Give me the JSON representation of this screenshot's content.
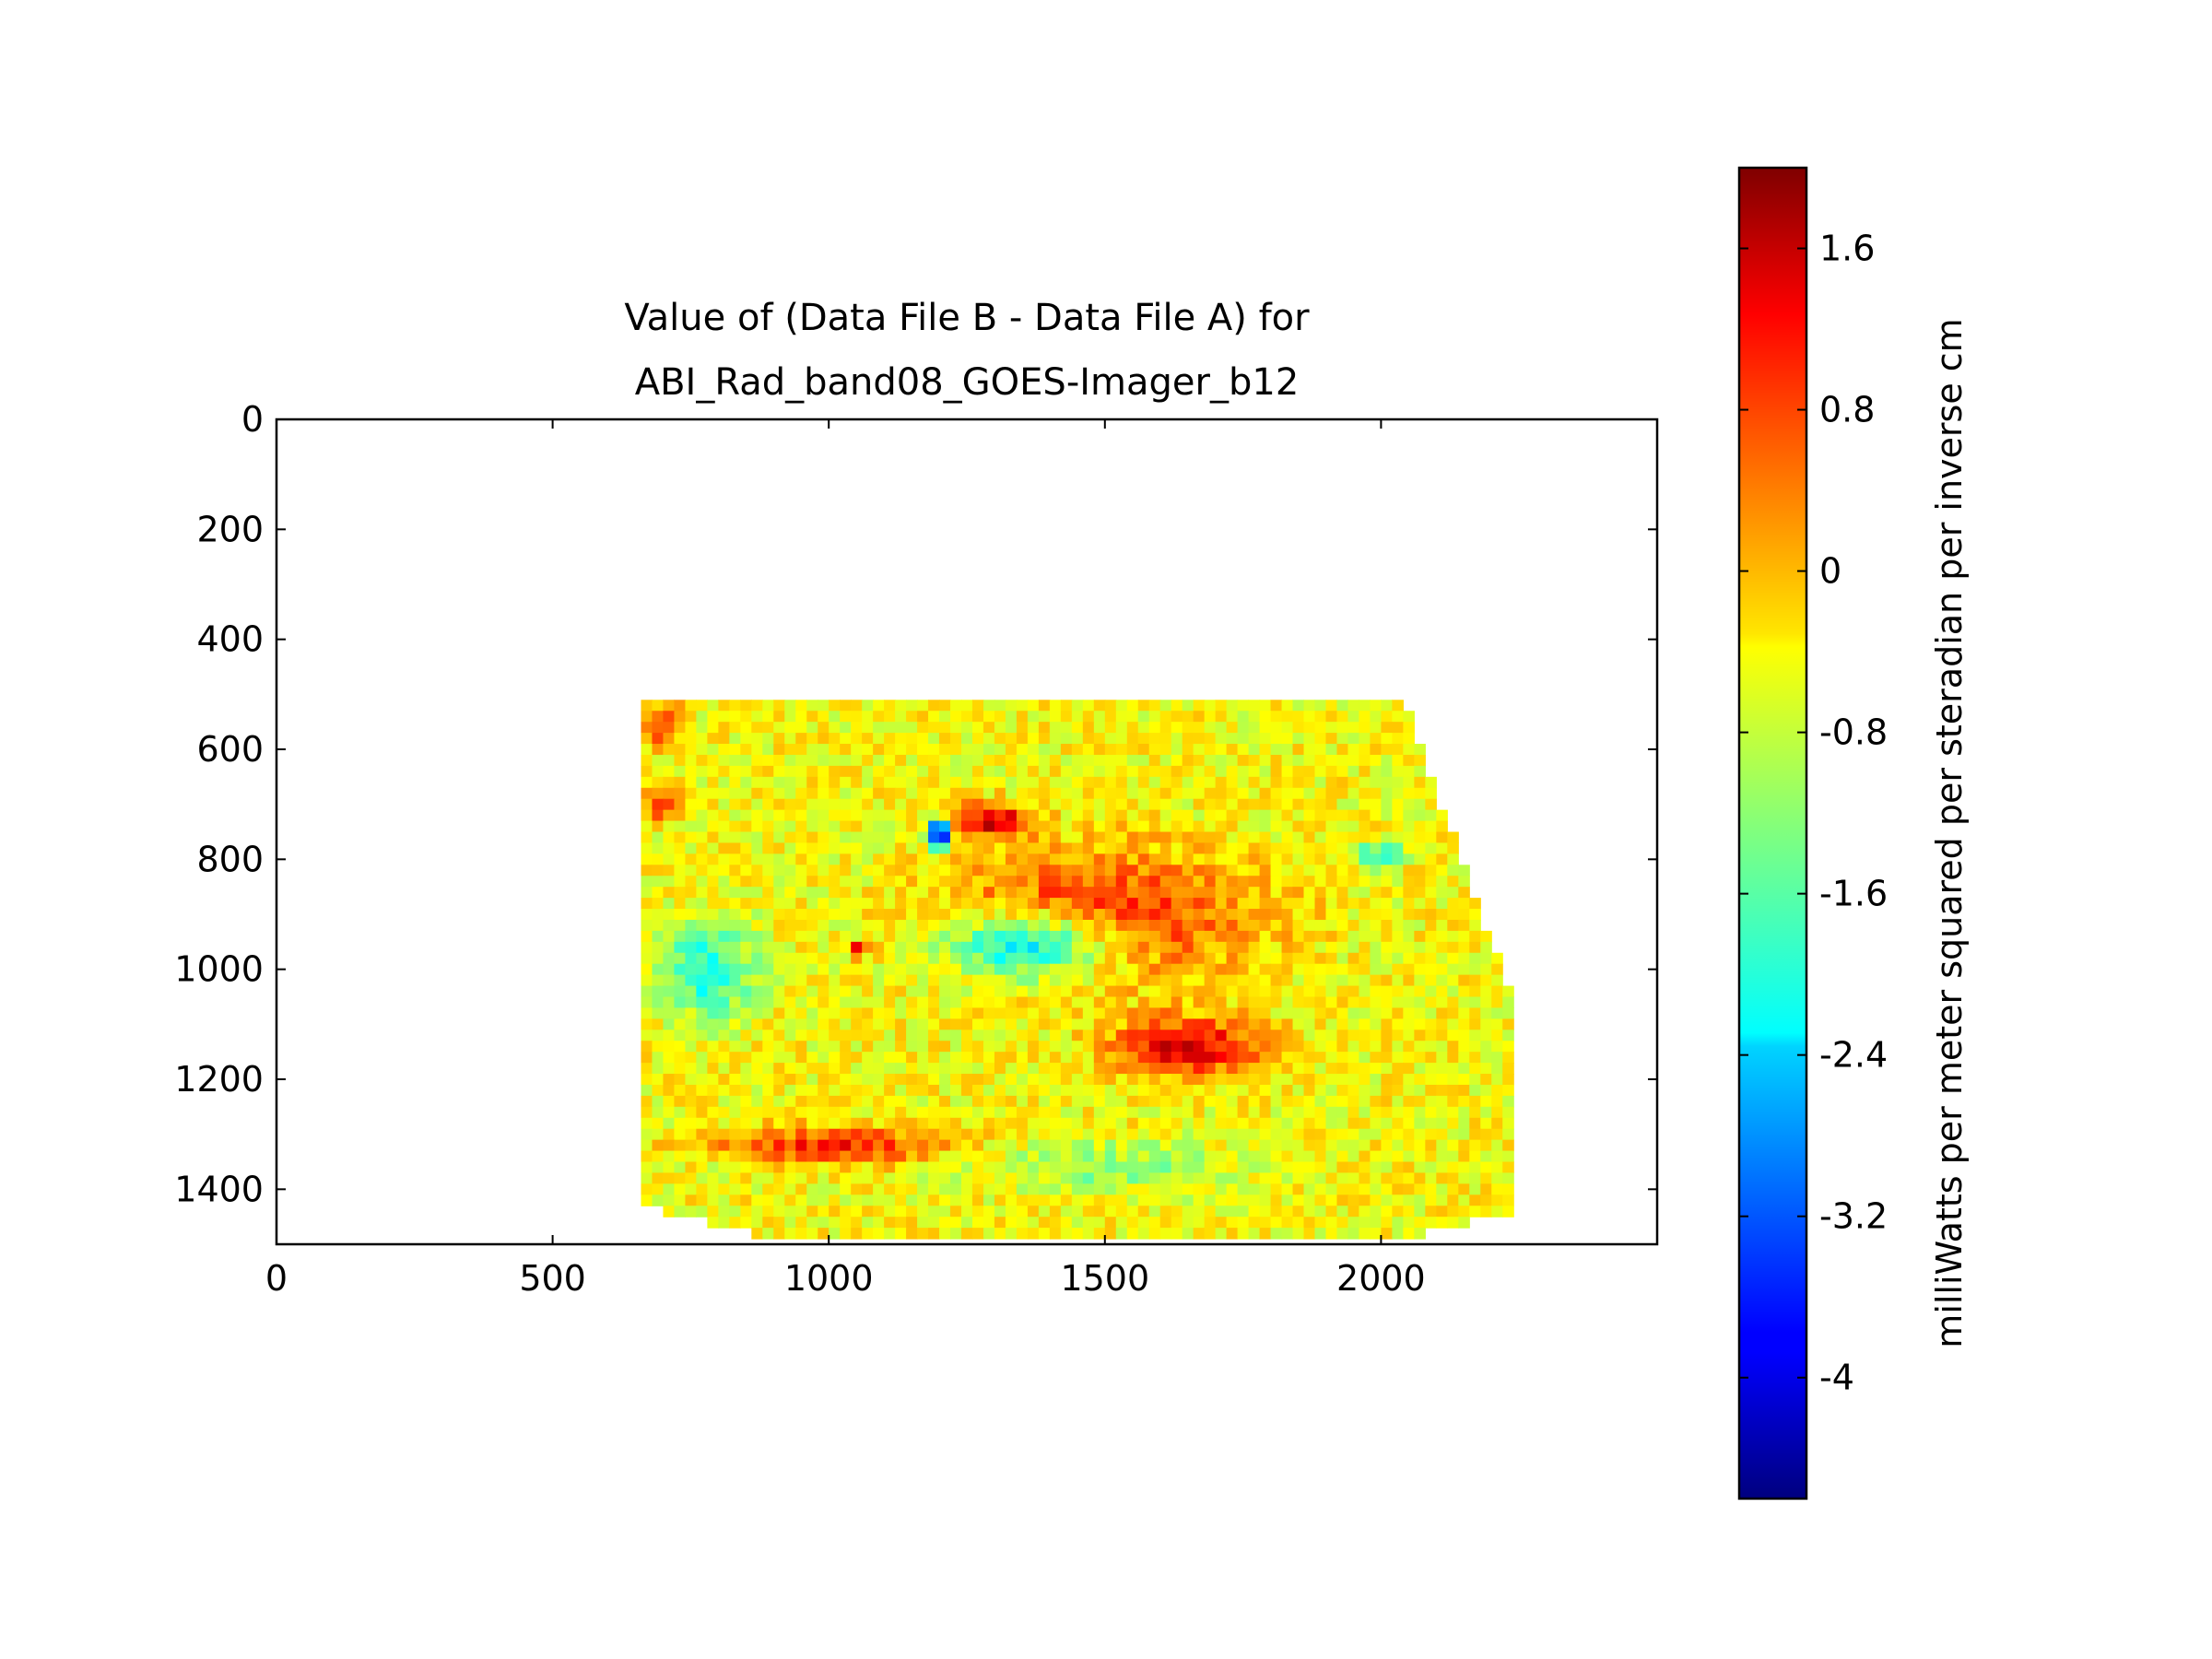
{
  "chart_data": {
    "type": "heatmap",
    "title_lines": [
      "Value of (Data File B - Data File A) for",
      "ABI_Rad_band08_GOES-Imager_b12"
    ],
    "xlim": [
      0,
      2500
    ],
    "ylim": [
      1500,
      0
    ],
    "x_ticks": [
      0,
      500,
      1000,
      1500,
      2000
    ],
    "y_ticks": [
      0,
      200,
      400,
      600,
      800,
      1000,
      1200,
      1400
    ],
    "x_tick_labels": [
      "0",
      "500",
      "1000",
      "1500",
      "2000"
    ],
    "y_tick_labels": [
      "0",
      "200",
      "400",
      "600",
      "800",
      "1000",
      "1200",
      "1400"
    ],
    "colormap": "jet",
    "colorbar": {
      "label": "milliWatts per meter squared per steradian per inverse cm",
      "range": [
        -4.6,
        2.0
      ],
      "ticks": [
        1.6,
        0.8,
        0,
        -0.8,
        -1.6,
        -2.4,
        -3.2,
        -4
      ],
      "tick_labels": [
        "1.6",
        "0.8",
        "0",
        "-0.8",
        "-1.6",
        "-2.4",
        "-3.2",
        "-4"
      ]
    },
    "data_region": {
      "description_values_only": true,
      "polygon": [
        [
          660,
          510
        ],
        [
          2040,
          510
        ],
        [
          2240,
          1060
        ],
        [
          2240,
          1440
        ],
        [
          2200,
          1450
        ],
        [
          2080,
          1480
        ],
        [
          900,
          1490
        ],
        [
          660,
          1430
        ]
      ],
      "background_value": -0.5,
      "features": [
        {
          "cx": 1500,
          "cy": 900,
          "rx": 350,
          "ry": 150,
          "value": 0.9
        },
        {
          "cx": 1650,
          "cy": 1140,
          "rx": 170,
          "ry": 70,
          "value": 1.4
        },
        {
          "cx": 1300,
          "cy": 730,
          "rx": 90,
          "ry": 40,
          "value": 1.5
        },
        {
          "cx": 1200,
          "cy": 755,
          "rx": 25,
          "ry": 35,
          "value": -4.3
        },
        {
          "cx": 1350,
          "cy": 960,
          "rx": 200,
          "ry": 80,
          "value": -2.0
        },
        {
          "cx": 780,
          "cy": 1000,
          "rx": 110,
          "ry": 110,
          "value": -2.0
        },
        {
          "cx": 1010,
          "cy": 1320,
          "rx": 280,
          "ry": 40,
          "value": 1.0
        },
        {
          "cx": 700,
          "cy": 560,
          "rx": 50,
          "ry": 50,
          "value": 0.7
        },
        {
          "cx": 700,
          "cy": 700,
          "rx": 50,
          "ry": 40,
          "value": 0.9
        },
        {
          "cx": 1050,
          "cy": 965,
          "rx": 20,
          "ry": 15,
          "value": 1.5
        },
        {
          "cx": 1500,
          "cy": 1360,
          "rx": 300,
          "ry": 60,
          "value": -1.2
        },
        {
          "cx": 2000,
          "cy": 790,
          "rx": 60,
          "ry": 30,
          "value": -1.8
        }
      ]
    }
  }
}
